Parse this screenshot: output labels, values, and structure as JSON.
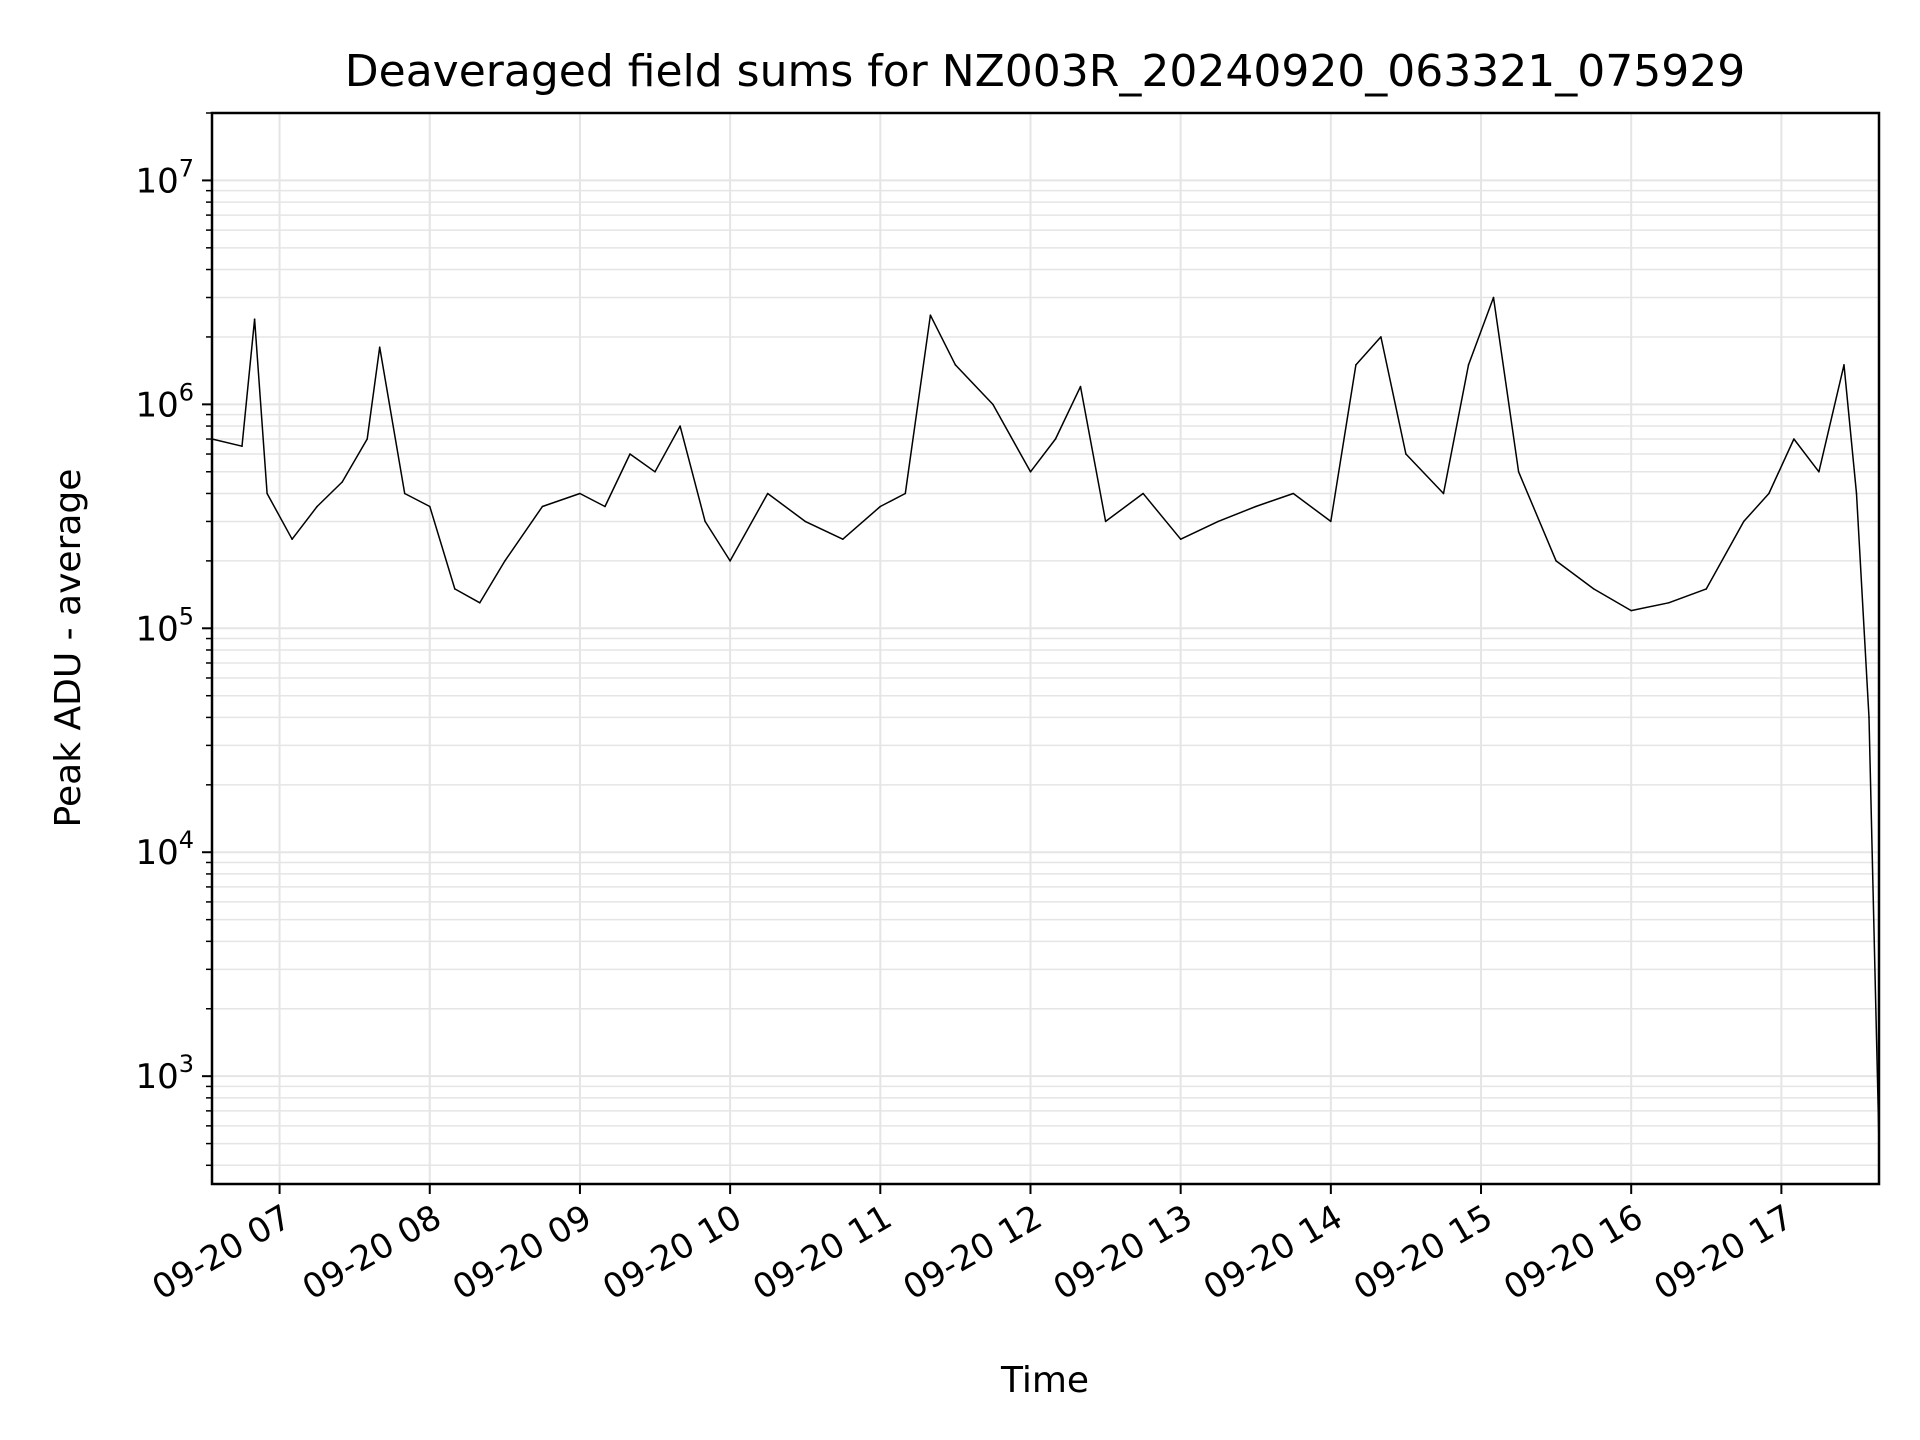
{
  "chart_data": {
    "type": "line",
    "title": "Deaveraged field sums for NZ003R_20240920_063321_075929",
    "xlabel": "Time",
    "ylabel": "Peak ADU - average",
    "yscale": "log",
    "ylim": [
      330,
      20000000
    ],
    "xlim": [
      "2024-09-20 06:33",
      "2024-09-20 17:39"
    ],
    "grid": true,
    "line_color": "#000000",
    "grid_color": "#e5e5e5",
    "x_ticks": [
      {
        "x": "2024-09-20 07:00",
        "label": "09-20 07"
      },
      {
        "x": "2024-09-20 08:00",
        "label": "09-20 08"
      },
      {
        "x": "2024-09-20 09:00",
        "label": "09-20 09"
      },
      {
        "x": "2024-09-20 10:00",
        "label": "09-20 10"
      },
      {
        "x": "2024-09-20 11:00",
        "label": "09-20 11"
      },
      {
        "x": "2024-09-20 12:00",
        "label": "09-20 12"
      },
      {
        "x": "2024-09-20 13:00",
        "label": "09-20 13"
      },
      {
        "x": "2024-09-20 14:00",
        "label": "09-20 14"
      },
      {
        "x": "2024-09-20 15:00",
        "label": "09-20 15"
      },
      {
        "x": "2024-09-20 16:00",
        "label": "09-20 16"
      },
      {
        "x": "2024-09-20 17:00",
        "label": "09-20 17"
      }
    ],
    "y_ticks": [
      {
        "value": 1000,
        "base": "10",
        "exp": "3"
      },
      {
        "value": 10000,
        "base": "10",
        "exp": "4"
      },
      {
        "value": 100000,
        "base": "10",
        "exp": "5"
      },
      {
        "value": 1000000,
        "base": "10",
        "exp": "6"
      },
      {
        "value": 10000000,
        "base": "10",
        "exp": "7"
      }
    ],
    "series": [
      {
        "x": [
          "2024-09-20 06:33",
          "2024-09-20 06:45",
          "2024-09-20 06:50",
          "2024-09-20 06:55",
          "2024-09-20 07:05",
          "2024-09-20 07:15",
          "2024-09-20 07:25",
          "2024-09-20 07:35",
          "2024-09-20 07:40",
          "2024-09-20 07:50",
          "2024-09-20 08:00",
          "2024-09-20 08:10",
          "2024-09-20 08:20",
          "2024-09-20 08:30",
          "2024-09-20 08:45",
          "2024-09-20 09:00",
          "2024-09-20 09:10",
          "2024-09-20 09:20",
          "2024-09-20 09:30",
          "2024-09-20 09:40",
          "2024-09-20 09:50",
          "2024-09-20 10:00",
          "2024-09-20 10:15",
          "2024-09-20 10:30",
          "2024-09-20 10:45",
          "2024-09-20 11:00",
          "2024-09-20 11:10",
          "2024-09-20 11:20",
          "2024-09-20 11:30",
          "2024-09-20 11:45",
          "2024-09-20 12:00",
          "2024-09-20 12:10",
          "2024-09-20 12:20",
          "2024-09-20 12:30",
          "2024-09-20 12:45",
          "2024-09-20 13:00",
          "2024-09-20 13:15",
          "2024-09-20 13:30",
          "2024-09-20 13:45",
          "2024-09-20 14:00",
          "2024-09-20 14:10",
          "2024-09-20 14:20",
          "2024-09-20 14:30",
          "2024-09-20 14:45",
          "2024-09-20 14:55",
          "2024-09-20 15:05",
          "2024-09-20 15:15",
          "2024-09-20 15:30",
          "2024-09-20 15:45",
          "2024-09-20 16:00",
          "2024-09-20 16:15",
          "2024-09-20 16:30",
          "2024-09-20 16:45",
          "2024-09-20 16:55",
          "2024-09-20 17:05",
          "2024-09-20 17:15",
          "2024-09-20 17:25",
          "2024-09-20 17:30",
          "2024-09-20 17:35",
          "2024-09-20 17:39"
        ],
        "values": [
          700000,
          650000,
          2400000,
          400000,
          250000,
          350000,
          450000,
          700000,
          1800000,
          400000,
          350000,
          150000,
          130000,
          200000,
          350000,
          400000,
          350000,
          600000,
          500000,
          800000,
          300000,
          200000,
          400000,
          300000,
          250000,
          350000,
          400000,
          2500000,
          1500000,
          1000000,
          500000,
          700000,
          1200000,
          300000,
          400000,
          250000,
          300000,
          350000,
          400000,
          300000,
          1500000,
          2000000,
          600000,
          400000,
          1500000,
          3000000,
          500000,
          200000,
          150000,
          120000,
          130000,
          150000,
          300000,
          400000,
          700000,
          500000,
          1500000,
          400000,
          40000,
          500
        ]
      }
    ]
  }
}
